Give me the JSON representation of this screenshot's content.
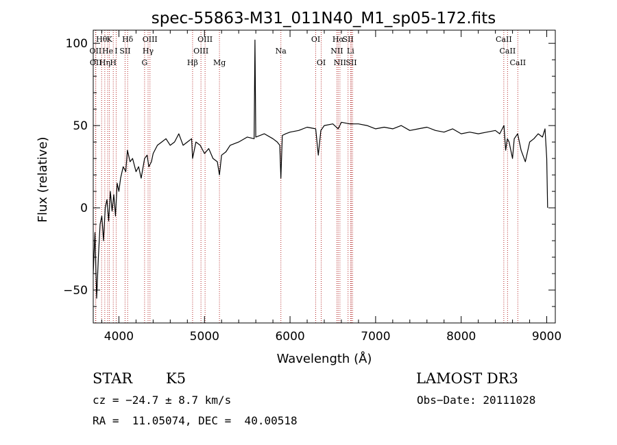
{
  "chart_data": {
    "type": "line",
    "title": "spec-55863-M31_011N40_M1_sp05-172.fits",
    "xlabel": "Wavelength (Å)",
    "ylabel": "Flux (relative)",
    "xlim": [
      3700,
      9100
    ],
    "ylim": [
      -70,
      108
    ],
    "x_ticks": [
      4000,
      5000,
      6000,
      7000,
      8000,
      9000
    ],
    "y_ticks": [
      -50,
      0,
      50,
      100
    ],
    "x_tick_labels": [
      "4000",
      "5000",
      "6000",
      "7000",
      "8000",
      "9000"
    ],
    "y_tick_labels": [
      "−50",
      "0",
      "50",
      "100"
    ],
    "series": [
      {
        "name": "flux",
        "x": [
          3700,
          3720,
          3740,
          3760,
          3780,
          3800,
          3820,
          3840,
          3860,
          3880,
          3900,
          3920,
          3940,
          3960,
          3980,
          4000,
          4020,
          4050,
          4080,
          4100,
          4130,
          4160,
          4200,
          4230,
          4260,
          4300,
          4330,
          4350,
          4380,
          4400,
          4450,
          4500,
          4550,
          4600,
          4650,
          4700,
          4750,
          4800,
          4850,
          4861,
          4900,
          4950,
          5000,
          5050,
          5100,
          5150,
          5175,
          5200,
          5250,
          5300,
          5400,
          5500,
          5580,
          5590,
          5600,
          5700,
          5800,
          5850,
          5880,
          5893,
          5910,
          5950,
          6000,
          6100,
          6200,
          6300,
          6330,
          6360,
          6400,
          6500,
          6563,
          6600,
          6700,
          6800,
          6900,
          7000,
          7100,
          7200,
          7300,
          7400,
          7500,
          7600,
          7700,
          7800,
          7900,
          8000,
          8100,
          8200,
          8300,
          8400,
          8450,
          8500,
          8520,
          8540,
          8560,
          8600,
          8620,
          8660,
          8700,
          8750,
          8800,
          8850,
          8900,
          8950,
          8980,
          9000,
          9010
        ],
        "y": [
          -40,
          -15,
          -55,
          -30,
          -10,
          -5,
          -20,
          0,
          5,
          -8,
          10,
          -2,
          8,
          -5,
          15,
          10,
          18,
          25,
          22,
          35,
          28,
          30,
          22,
          25,
          18,
          30,
          32,
          25,
          28,
          33,
          38,
          40,
          42,
          38,
          40,
          45,
          38,
          40,
          42,
          30,
          40,
          38,
          33,
          36,
          30,
          28,
          20,
          32,
          34,
          38,
          40,
          43,
          42,
          102,
          43,
          45,
          42,
          40,
          38,
          18,
          44,
          45,
          46,
          47,
          49,
          48,
          32,
          47,
          50,
          51,
          48,
          52,
          51,
          51,
          50,
          48,
          49,
          48,
          50,
          47,
          48,
          49,
          47,
          46,
          48,
          45,
          46,
          45,
          46,
          47,
          45,
          50,
          35,
          42,
          40,
          30,
          42,
          45,
          35,
          28,
          40,
          42,
          45,
          43,
          48,
          30,
          0
        ]
      }
    ],
    "line_markers": [
      {
        "w": 3727,
        "label": "OII",
        "row": 2
      },
      {
        "w": 3730,
        "label": "OII",
        "row": 3
      },
      {
        "w": 3798,
        "label": "Hθ",
        "row": 1
      },
      {
        "w": 3835,
        "label": "Hη",
        "row": 3
      },
      {
        "w": 3869,
        "label": "He",
        "row": 2
      },
      {
        "w": 3889,
        "label": "K",
        "row": 1
      },
      {
        "w": 3934,
        "label": "H",
        "row": 3
      },
      {
        "w": 3968,
        "label": "I",
        "row": 2
      },
      {
        "w": 4072,
        "label": "SII",
        "row": 2
      },
      {
        "w": 4102,
        "label": "Hδ",
        "row": 1
      },
      {
        "w": 4300,
        "label": "G",
        "row": 3
      },
      {
        "w": 4341,
        "label": "Hγ",
        "row": 2
      },
      {
        "w": 4363,
        "label": "OIII",
        "row": 1
      },
      {
        "w": 4861,
        "label": "Hβ",
        "row": 3
      },
      {
        "w": 4959,
        "label": "OIII",
        "row": 2
      },
      {
        "w": 5007,
        "label": "OIII",
        "row": 1
      },
      {
        "w": 5175,
        "label": "Mg",
        "row": 3
      },
      {
        "w": 5893,
        "label": "Na",
        "row": 2
      },
      {
        "w": 6300,
        "label": "OI",
        "row": 1
      },
      {
        "w": 6364,
        "label": "OI",
        "row": 3
      },
      {
        "w": 6548,
        "label": "NII",
        "row": 2
      },
      {
        "w": 6563,
        "label": "Hα",
        "row": 1
      },
      {
        "w": 6583,
        "label": "NII",
        "row": 3
      },
      {
        "w": 6678,
        "label": "SII",
        "row": 1
      },
      {
        "w": 6707,
        "label": "Li",
        "row": 2
      },
      {
        "w": 6716,
        "label": "SII",
        "row": 3
      },
      {
        "w": 6731,
        "label": "",
        "row": 0
      },
      {
        "w": 8498,
        "label": "CaII",
        "row": 1
      },
      {
        "w": 8542,
        "label": "CaII",
        "row": 2
      },
      {
        "w": 8662,
        "label": "CaII",
        "row": 3
      }
    ]
  },
  "info": {
    "class_label": "STAR",
    "subclass": "K5",
    "survey": "LAMOST DR3",
    "cz_line": "cz = −24.7 ± 8.7 km/s",
    "obs_date": "Obs−Date: 20111028",
    "radec_line": "RA =  11.05074, DEC =  40.00518"
  },
  "colors": {
    "line": "#000000",
    "marker": "#b22222"
  }
}
